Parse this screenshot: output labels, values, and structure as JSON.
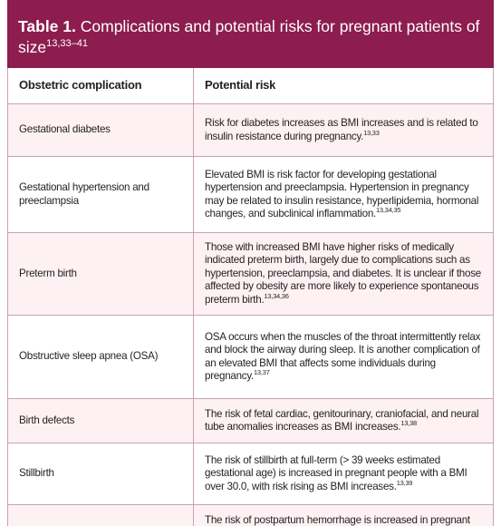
{
  "table": {
    "label": "Table 1.",
    "title": "Complications and potential risks for pregnant patients of size",
    "title_refs": "13,33–41",
    "header": [
      "Obstetric complication",
      "Potential risk"
    ],
    "rows": [
      {
        "complication": "Gestational diabetes",
        "risk": "Risk for diabetes increases as BMI increases and is related to insulin resistance during pregnancy.",
        "refs": "13,33"
      },
      {
        "complication": "Gestational hypertension and preeclampsia",
        "risk": "Elevated BMI is risk factor for developing gestational hypertension and preeclampsia. Hypertension in pregnancy may be related to insulin resistance, hyperlipidemia, hormonal changes, and subclinical inflammation.",
        "refs": "13,34,35"
      },
      {
        "complication": "Preterm birth",
        "risk": "Those with increased BMI have higher risks of medically indicated preterm birth, largely due to complications such as hypertension, preeclampsia, and diabetes. It is unclear if those affected by obesity are more likely to experience spontaneous preterm birth.",
        "refs": "13,34,36"
      },
      {
        "complication": "Obstructive sleep apnea (OSA)",
        "risk": "OSA occurs when the muscles of the throat intermittently relax and block the airway during sleep. It is another complication of an elevated BMI that affects some individuals during pregnancy.",
        "refs": "13,37"
      },
      {
        "complication": "Birth defects",
        "risk": "The risk of fetal cardiac, genitourinary, craniofacial, and neural tube anomalies increases as BMI increases.",
        "refs": "13,38"
      },
      {
        "complication": "Stillbirth",
        "risk": "The risk of stillbirth at full-term (> 39 weeks estimated gestational age) is increased in pregnant people with a BMI over 30.0, with risk rising as BMI increases.",
        "refs": "13,39"
      },
      {
        "complication": "",
        "risk": "The risk of postpartum hemorrhage is increased in pregnant",
        "refs": ""
      }
    ]
  }
}
